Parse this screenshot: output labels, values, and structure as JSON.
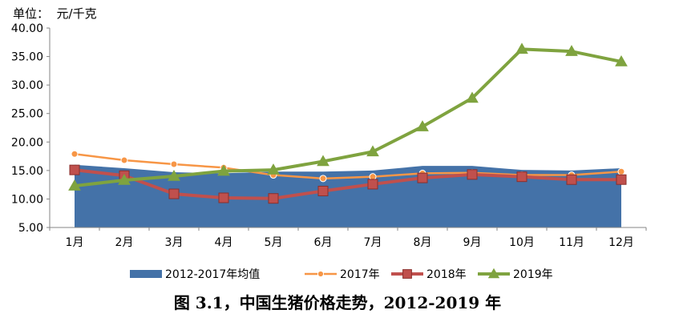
{
  "chart_data": {
    "type": "line",
    "unit_label": "单位：  元/千克",
    "caption": "图 3.1，中国生猪价格走势，2012-2019 年",
    "categories": [
      "1月",
      "2月",
      "3月",
      "4月",
      "5月",
      "6月",
      "7月",
      "8月",
      "9月",
      "10月",
      "11月",
      "12月"
    ],
    "ylim": [
      5,
      40
    ],
    "yticks": [
      "5.00",
      "10.00",
      "15.00",
      "20.00",
      "25.00",
      "30.00",
      "35.00",
      "40.00"
    ],
    "grid": false,
    "legend_position": "bottom",
    "series": [
      {
        "name": "2012-2017年均值",
        "kind": "area",
        "color": "#4472a8",
        "values": [
          16.0,
          15.4,
          14.7,
          14.5,
          14.8,
          14.8,
          15.0,
          15.8,
          15.8,
          15.1,
          15.0,
          15.4
        ]
      },
      {
        "name": "2017年",
        "kind": "line",
        "marker": "circle",
        "color": "#f79646",
        "values": [
          17.9,
          16.8,
          16.1,
          15.5,
          14.2,
          13.6,
          13.9,
          14.5,
          14.6,
          14.2,
          14.2,
          14.8
        ]
      },
      {
        "name": "2018年",
        "kind": "line",
        "marker": "square",
        "color": "#c0504d",
        "values": [
          15.1,
          14.1,
          10.9,
          10.2,
          10.1,
          11.4,
          12.6,
          13.7,
          14.3,
          13.9,
          13.4,
          13.4
        ]
      },
      {
        "name": "2019年",
        "kind": "line",
        "marker": "triangle",
        "color": "#7fa33f",
        "values": [
          12.3,
          13.3,
          14.0,
          14.9,
          15.1,
          16.6,
          18.3,
          22.7,
          27.7,
          36.3,
          35.9,
          34.1
        ]
      }
    ]
  }
}
